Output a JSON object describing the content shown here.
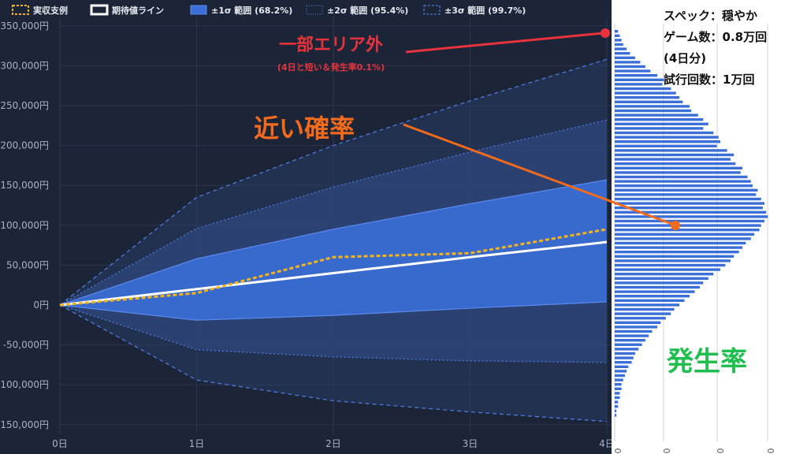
{
  "chart_data": {
    "type": "area",
    "x_ticks": [
      "0日",
      "1日",
      "2日",
      "3日",
      "4日"
    ],
    "x": [
      0,
      1,
      2,
      3,
      4
    ],
    "ylim": [
      -150000,
      350000
    ],
    "y_ticks": [
      "-150,000円",
      "-100,000円",
      "-50,000円",
      "0円",
      "50,000円",
      "100,000円",
      "150,000円",
      "200,000円",
      "250,000円",
      "300,000円",
      "350,000円"
    ],
    "y_tick_values": [
      -150000,
      -100000,
      -50000,
      0,
      50000,
      100000,
      150000,
      200000,
      250000,
      300000,
      350000
    ],
    "grid": true,
    "legend_position": "top",
    "legend": [
      {
        "label": "実収支例",
        "style": "dashed-orange"
      },
      {
        "label": "期待値ライン",
        "style": "solid-white"
      },
      {
        "label": "±1σ 範囲 (68.2%)",
        "style": "filled-blue"
      },
      {
        "label": "±2σ 範囲 (95.4%)",
        "style": "dotted-blue"
      },
      {
        "label": "±3σ 範囲 (99.7%)",
        "style": "dashed-blue"
      }
    ],
    "series": [
      {
        "name": "期待値ライン",
        "values": [
          0,
          20000,
          40000,
          60000,
          79000
        ]
      },
      {
        "name": "実収支例",
        "values": [
          0,
          15000,
          60000,
          65000,
          95000
        ]
      }
    ],
    "bands": {
      "sigma1_upper": [
        0,
        58000,
        95000,
        127000,
        157000
      ],
      "sigma1_lower": [
        0,
        -19000,
        -13000,
        -4000,
        4000
      ],
      "sigma2_upper": [
        0,
        96000,
        148000,
        192000,
        232000
      ],
      "sigma2_lower": [
        0,
        -56000,
        -65000,
        -70000,
        -72000
      ],
      "sigma3_upper": [
        0,
        135000,
        200000,
        256000,
        308000
      ],
      "sigma3_lower": [
        0,
        -94000,
        -120000,
        -134000,
        -146000
      ]
    }
  },
  "histogram": {
    "x_axis_labels": [
      "0",
      "0",
      "0",
      "0"
    ],
    "bar_count": 88,
    "bar_lengths": [
      0.02,
      0.03,
      0.04,
      0.05,
      0.07,
      0.09,
      0.12,
      0.15,
      0.18,
      0.21,
      0.25,
      0.29,
      0.28,
      0.33,
      0.36,
      0.38,
      0.4,
      0.44,
      0.45,
      0.49,
      0.52,
      0.55,
      0.52,
      0.58,
      0.61,
      0.62,
      0.6,
      0.66,
      0.7,
      0.68,
      0.71,
      0.75,
      0.74,
      0.78,
      0.8,
      0.81,
      0.84,
      0.83,
      0.86,
      0.88,
      0.87,
      0.89,
      0.9,
      0.88,
      0.86,
      0.85,
      0.82,
      0.8,
      0.77,
      0.75,
      0.73,
      0.7,
      0.68,
      0.65,
      0.62,
      0.58,
      0.55,
      0.52,
      0.5,
      0.47,
      0.44,
      0.41,
      0.38,
      0.35,
      0.33,
      0.3,
      0.27,
      0.25,
      0.22,
      0.2,
      0.18,
      0.16,
      0.14,
      0.12,
      0.11,
      0.1,
      0.08,
      0.07,
      0.06,
      0.05,
      0.04,
      0.04,
      0.03,
      0.03,
      0.02,
      0.02,
      0.01,
      0.01
    ]
  },
  "annotations": {
    "outside_area": {
      "title": "一部エリア外",
      "note": "(4日と短い＆発生率0.1%)"
    },
    "close_prob": "近い確率",
    "occurrence": "発生率"
  },
  "specs": {
    "line1": "スペック：穏やか",
    "line2": "ゲーム数：0.8万回",
    "line3": "(4日分)",
    "line4": "試行回数：1万回"
  },
  "colors": {
    "background": "#1c2538",
    "band_fill": "#3a6fd8",
    "band_line": "#4f7fe8",
    "expected_line": "#ffffff",
    "actual_line": "#f4b41a",
    "annotation_red": "#e8323c",
    "annotation_orange": "#f26a1b",
    "annotation_green": "#1fbf4f",
    "histogram_bar": "#3a6fd8"
  }
}
